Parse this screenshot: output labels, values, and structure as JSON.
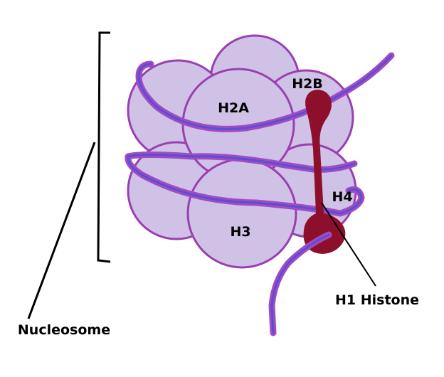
{
  "diagram": {
    "labels": {
      "h2a": "H2A",
      "h2b": "H2B",
      "h3": "H3",
      "h4": "H4",
      "h1": "H1 Histone",
      "nucleosome": "Nucleosome"
    },
    "colors": {
      "histone_fill": "#cfc2e6",
      "histone_outline": "#9a3fb0",
      "dna_outer": "#a24bc2",
      "dna_inner": "#5a4fd2",
      "h1_fill": "#8e0f2c",
      "leader_line": "#000000"
    }
  }
}
